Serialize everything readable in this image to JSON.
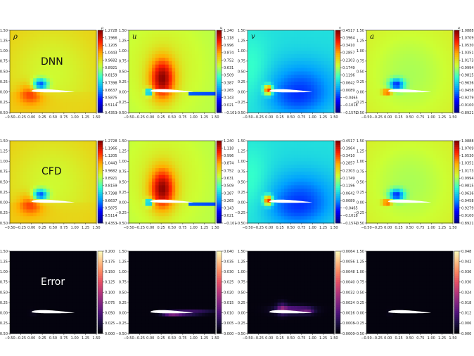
{
  "figure": {
    "row_labels": [
      "DNN",
      "CFD",
      "Error"
    ],
    "colors": {
      "jet_stops": [
        "#00007f",
        "#0000ff",
        "#00a0ff",
        "#33ffcc",
        "#ccff33",
        "#ffb000",
        "#ff2000",
        "#7f0000"
      ],
      "magma_stops": [
        "#000004",
        "#1c1044",
        "#4f127b",
        "#812581",
        "#b5367a",
        "#e55064",
        "#fb8761",
        "#fec287",
        "#fcfdbf"
      ],
      "airfoil": "#ffffff"
    }
  },
  "chart_data": [
    {
      "type": "heatmap",
      "id": "rho-dnn",
      "row": 0,
      "col": 0,
      "var_label": "ρ",
      "cbar_label": "ρ",
      "colormap": "jet",
      "field": "rho",
      "xlim": [
        -0.5,
        1.5
      ],
      "ylim": [
        -0.5,
        1.5
      ],
      "xticks": [
        "−0.50",
        "−0.25",
        "0.00",
        "0.25",
        "0.50",
        "0.75",
        "1.00",
        "1.25",
        "1.50"
      ],
      "yticks": [
        "−0.50",
        "−0.25",
        "0.00",
        "0.25",
        "0.50",
        "0.75",
        "1.00",
        "1.25",
        "1.50"
      ],
      "cbar_ticks": [
        "1.2728",
        "1.1966",
        "1.1205",
        "1.0443",
        "0.9682",
        "0.8921",
        "0.8159",
        "0.7398",
        "0.6637",
        "0.5875",
        "0.5114",
        "0.4353"
      ]
    },
    {
      "type": "heatmap",
      "id": "u-dnn",
      "row": 0,
      "col": 1,
      "var_label": "u",
      "cbar_label": "u",
      "colormap": "jet",
      "field": "u",
      "xlim": [
        -0.5,
        1.5
      ],
      "ylim": [
        -0.5,
        1.5
      ],
      "xticks": [
        "−0.50",
        "−0.25",
        "0.00",
        "0.25",
        "0.50",
        "0.75",
        "1.00",
        "1.25",
        "1.50"
      ],
      "yticks": [
        "−0.50",
        "−0.25",
        "0.00",
        "0.25",
        "0.50",
        "0.75",
        "1.00",
        "1.25",
        "1.50"
      ],
      "cbar_ticks": [
        "1.240",
        "1.118",
        "0.996",
        "0.874",
        "0.752",
        "0.631",
        "0.509",
        "0.387",
        "0.265",
        "0.143",
        "0.021",
        "−0.101"
      ]
    },
    {
      "type": "heatmap",
      "id": "v-dnn",
      "row": 0,
      "col": 2,
      "var_label": "v",
      "cbar_label": "v",
      "colormap": "jet",
      "field": "v",
      "xlim": [
        -0.5,
        1.5
      ],
      "ylim": [
        -0.5,
        1.5
      ],
      "xticks": [
        "−0.50",
        "−0.25",
        "0.00",
        "0.25",
        "0.50",
        "0.75",
        "1.00",
        "1.25",
        "1.50"
      ],
      "yticks": [
        "−0.50",
        "−0.25",
        "0.00",
        "0.25",
        "0.50",
        "0.75",
        "1.00",
        "1.25",
        "1.50"
      ],
      "cbar_ticks": [
        "0.4517",
        "0.3964",
        "0.3410",
        "0.2857",
        "0.2303",
        "0.1749",
        "0.1196",
        "0.0642",
        "0.0089",
        "−0.0465",
        "−0.1018",
        "−0.1572"
      ]
    },
    {
      "type": "heatmap",
      "id": "a-dnn",
      "row": 0,
      "col": 3,
      "var_label": "a",
      "cbar_label": "a",
      "colormap": "jet",
      "field": "a",
      "xlim": [
        -0.5,
        1.5
      ],
      "ylim": [
        -0.5,
        1.5
      ],
      "xticks": [
        "−0.50",
        "−0.25",
        "0.00",
        "0.25",
        "0.50",
        "0.75",
        "1.00",
        "1.25",
        "1.50"
      ],
      "yticks": [
        "−0.50",
        "−0.25",
        "0.00",
        "0.25",
        "0.50",
        "0.75",
        "1.00",
        "1.25",
        "1.50"
      ],
      "cbar_ticks": [
        "1.0888",
        "1.0709",
        "1.0530",
        "1.0351",
        "1.0173",
        "0.9994",
        "0.9815",
        "0.9636",
        "0.9458",
        "0.9279",
        "0.9100",
        "0.8921"
      ]
    },
    {
      "type": "heatmap",
      "id": "rho-cfd",
      "row": 1,
      "col": 0,
      "var_label": "",
      "cbar_label": "",
      "colormap": "jet",
      "field": "rho",
      "xlim": [
        -0.5,
        1.5
      ],
      "ylim": [
        -0.5,
        1.5
      ],
      "xticks": [
        "−0.50",
        "−0.25",
        "0.00",
        "0.25",
        "0.50",
        "0.75",
        "1.00",
        "1.25",
        "1.50"
      ],
      "yticks": [
        "−0.50",
        "−0.25",
        "0.00",
        "0.25",
        "0.50",
        "0.75",
        "1.00",
        "1.25",
        "1.50"
      ],
      "cbar_ticks": [
        "1.2728",
        "1.1966",
        "1.1205",
        "1.0443",
        "0.9682",
        "0.8921",
        "0.8159",
        "0.7398",
        "0.6637",
        "0.5875",
        "0.5114",
        "0.4353"
      ]
    },
    {
      "type": "heatmap",
      "id": "u-cfd",
      "row": 1,
      "col": 1,
      "var_label": "",
      "cbar_label": "",
      "colormap": "jet",
      "field": "u",
      "xlim": [
        -0.5,
        1.5
      ],
      "ylim": [
        -0.5,
        1.5
      ],
      "xticks": [
        "−0.50",
        "−0.25",
        "0.00",
        "0.25",
        "0.50",
        "0.75",
        "1.00",
        "1.25",
        "1.50"
      ],
      "yticks": [
        "−0.50",
        "−0.25",
        "0.00",
        "0.25",
        "0.50",
        "0.75",
        "1.00",
        "1.25",
        "1.50"
      ],
      "cbar_ticks": [
        "1.240",
        "1.118",
        "0.996",
        "0.874",
        "0.752",
        "0.631",
        "0.509",
        "0.387",
        "0.265",
        "0.143",
        "0.021",
        "−0.101"
      ]
    },
    {
      "type": "heatmap",
      "id": "v-cfd",
      "row": 1,
      "col": 2,
      "var_label": "",
      "cbar_label": "",
      "colormap": "jet",
      "field": "v",
      "xlim": [
        -0.5,
        1.5
      ],
      "ylim": [
        -0.5,
        1.5
      ],
      "xticks": [
        "−0.50",
        "−0.25",
        "0.00",
        "0.25",
        "0.50",
        "0.75",
        "1.00",
        "1.25",
        "1.50"
      ],
      "yticks": [
        "−0.50",
        "−0.25",
        "0.00",
        "0.25",
        "0.50",
        "0.75",
        "1.00",
        "1.25",
        "1.50"
      ],
      "cbar_ticks": [
        "0.4517",
        "0.3964",
        "0.3410",
        "0.2857",
        "0.2303",
        "0.1749",
        "0.1196",
        "0.0642",
        "0.0089",
        "−0.0465",
        "−0.1018",
        "−0.1572"
      ]
    },
    {
      "type": "heatmap",
      "id": "a-cfd",
      "row": 1,
      "col": 3,
      "var_label": "",
      "cbar_label": "",
      "colormap": "jet",
      "field": "a",
      "xlim": [
        -0.5,
        1.5
      ],
      "ylim": [
        -0.5,
        1.5
      ],
      "xticks": [
        "−0.50",
        "−0.25",
        "0.00",
        "0.25",
        "0.50",
        "0.75",
        "1.00",
        "1.25",
        "1.50"
      ],
      "yticks": [
        "−0.50",
        "−0.25",
        "0.00",
        "0.25",
        "0.50",
        "0.75",
        "1.00",
        "1.25",
        "1.50"
      ],
      "cbar_ticks": [
        "1.0888",
        "1.0709",
        "1.0530",
        "1.0351",
        "1.0173",
        "0.9994",
        "0.9815",
        "0.9636",
        "0.9458",
        "0.9279",
        "0.9100",
        "0.8921"
      ]
    },
    {
      "type": "heatmap",
      "id": "rho-err",
      "row": 2,
      "col": 0,
      "var_label": "",
      "cbar_label": "",
      "colormap": "magma",
      "field": "err0",
      "xlim": [
        -0.5,
        1.5
      ],
      "ylim": [
        -0.5,
        1.5
      ],
      "xticks": [
        "−0.50",
        "−0.25",
        "0.00",
        "0.25",
        "0.50",
        "0.75",
        "1.00",
        "1.25",
        "1.50"
      ],
      "yticks": [
        "−0.50",
        "−0.25",
        "0.00",
        "0.25",
        "0.50",
        "0.75",
        "1.00",
        "1.25",
        "1.50"
      ],
      "cbar_ticks": [
        "0.200",
        "0.175",
        "0.150",
        "0.125",
        "0.100",
        "0.075",
        "0.050",
        "0.025",
        "0.000"
      ]
    },
    {
      "type": "heatmap",
      "id": "u-err",
      "row": 2,
      "col": 1,
      "var_label": "",
      "cbar_label": "",
      "colormap": "magma",
      "field": "err1",
      "xlim": [
        -0.5,
        1.5
      ],
      "ylim": [
        -0.5,
        1.5
      ],
      "xticks": [
        "−0.50",
        "−0.25",
        "0.00",
        "0.25",
        "0.50",
        "0.75",
        "1.00",
        "1.25",
        "1.50"
      ],
      "yticks": [
        "−0.50",
        "−0.25",
        "0.00",
        "0.25",
        "0.50",
        "0.75",
        "1.00",
        "1.25",
        "1.50"
      ],
      "cbar_ticks": [
        "0.040",
        "0.035",
        "0.030",
        "0.025",
        "0.020",
        "0.015",
        "0.010",
        "0.005",
        "0.000"
      ]
    },
    {
      "type": "heatmap",
      "id": "v-err",
      "row": 2,
      "col": 2,
      "var_label": "",
      "cbar_label": "",
      "colormap": "magma",
      "field": "err2",
      "xlim": [
        -0.5,
        1.5
      ],
      "ylim": [
        -0.5,
        1.5
      ],
      "xticks": [
        "−0.50",
        "−0.25",
        "0.00",
        "0.25",
        "0.50",
        "0.75",
        "1.00",
        "1.25",
        "1.50"
      ],
      "yticks": [
        "−0.50",
        "−0.25",
        "0.00",
        "0.25",
        "0.50",
        "0.75",
        "1.00",
        "1.25",
        "1.50"
      ],
      "cbar_ticks": [
        "0.0064",
        "0.0056",
        "0.0048",
        "0.0040",
        "0.0032",
        "0.0024",
        "0.0016",
        "0.0008",
        "0.0000"
      ]
    },
    {
      "type": "heatmap",
      "id": "a-err",
      "row": 2,
      "col": 3,
      "var_label": "",
      "cbar_label": "",
      "colormap": "magma",
      "field": "err3",
      "xlim": [
        -0.5,
        1.5
      ],
      "ylim": [
        -0.5,
        1.5
      ],
      "xticks": [
        "−0.50",
        "−0.25",
        "0.00",
        "0.25",
        "0.50",
        "0.75",
        "1.00",
        "1.25",
        "1.50"
      ],
      "yticks": [
        "−0.50",
        "−0.25",
        "0.00",
        "0.25",
        "0.50",
        "0.75",
        "1.00",
        "1.25",
        "1.50"
      ],
      "cbar_ticks": [
        "0.048",
        "0.042",
        "0.036",
        "0.030",
        "0.024",
        "0.018",
        "0.012",
        "0.006",
        "0.000"
      ]
    }
  ]
}
